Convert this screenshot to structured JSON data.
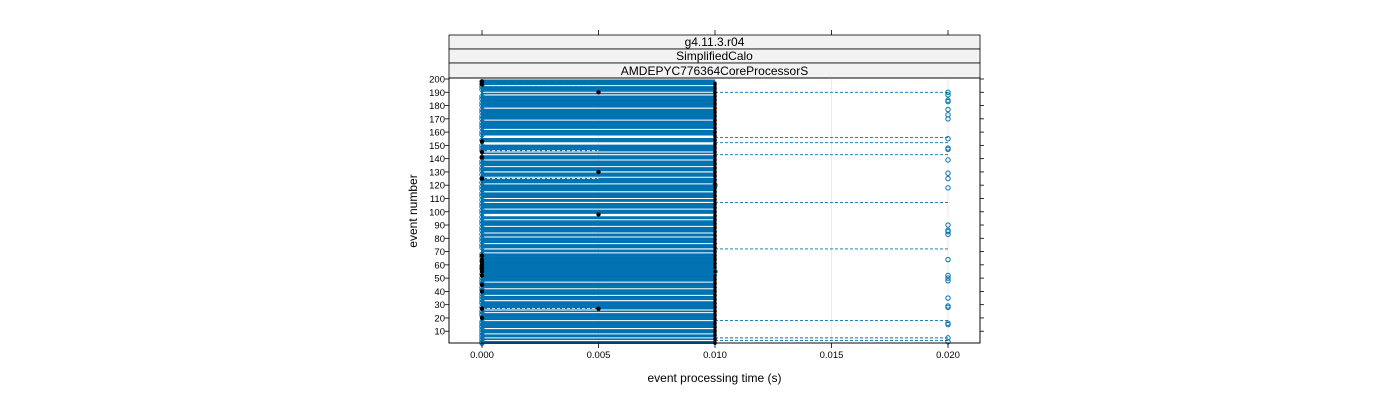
{
  "strips": [
    "g4.11.3.r04",
    "SimplifiedCalo",
    "AMDEPYC776364CoreProcessorS"
  ],
  "chart_data": {
    "type": "scatter",
    "title": "",
    "xlabel": "event processing time (s)",
    "ylabel": "event number",
    "xlim": [
      -0.0015,
      0.0213
    ],
    "ylim": [
      0,
      200
    ],
    "xticks": [
      "0.000",
      "0.005",
      "0.010",
      "0.015",
      "0.020"
    ],
    "yticks": [
      "10",
      "20",
      "30",
      "40",
      "50",
      "60",
      "70",
      "80",
      "90",
      "100",
      "110",
      "120",
      "130",
      "140",
      "150",
      "160",
      "170",
      "180",
      "190",
      "200"
    ],
    "grid": "vertical",
    "legend": "none",
    "colors": {
      "series": "#0072b2",
      "filled": "#000000",
      "strip_bg": "#f2f2f2",
      "grid": "#e6e6e6"
    },
    "solid_lines_to_x": 0.01,
    "dashed_lines_to_x": 0.02,
    "dashed_line_events": [
      3,
      5,
      18,
      72,
      107,
      143,
      152,
      156,
      190
    ],
    "open_points_x0": [
      1,
      2,
      4,
      6,
      7,
      9,
      11,
      13,
      14,
      16,
      17,
      22,
      23,
      25,
      28,
      31,
      32,
      34,
      36,
      38,
      41,
      43,
      46,
      48,
      50,
      53,
      57,
      59,
      63,
      66,
      68,
      73,
      75,
      78,
      80,
      83,
      86,
      88,
      91,
      93,
      96,
      99,
      101,
      104,
      106,
      109,
      112,
      114,
      117,
      119,
      122,
      125,
      128,
      131,
      133,
      136,
      138,
      141,
      146,
      148,
      150,
      154,
      158,
      160,
      163,
      165,
      167,
      170,
      172,
      175,
      177,
      180,
      182,
      185,
      187,
      192,
      194,
      196,
      198
    ],
    "filled_points_x0": [
      20,
      27,
      40,
      45,
      52,
      55,
      57,
      58,
      60,
      62,
      64,
      67,
      125,
      141,
      145,
      153,
      196,
      198
    ],
    "filled_points_x005": [
      27,
      98,
      130,
      190
    ],
    "open_points_x001": [
      55,
      120
    ],
    "open_points_x002": [
      2,
      5,
      15,
      16,
      28,
      29,
      35,
      48,
      50,
      52,
      64,
      83,
      85,
      86,
      90,
      118,
      125,
      129,
      139,
      147,
      148,
      155,
      170,
      173,
      177,
      183,
      184,
      188,
      190
    ]
  }
}
